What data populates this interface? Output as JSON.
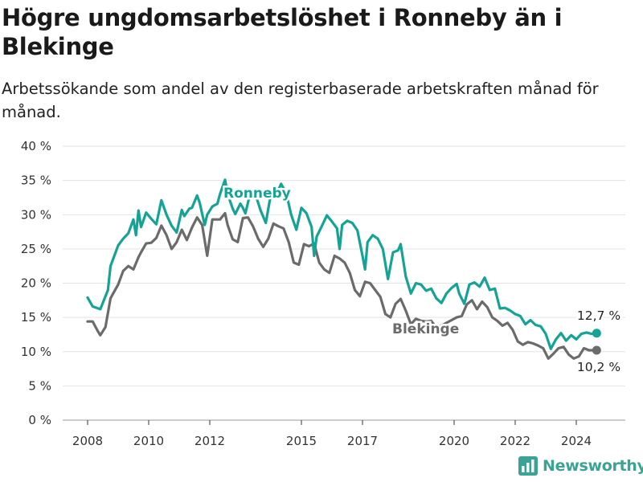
{
  "title": "Högre ungdomsarbetslöshet i Ronneby än i Blekinge",
  "subtitle": "Arbetssökande som andel av den registerbaserade arbetskraften månad för månad.",
  "brand": {
    "name": "Newsworthy",
    "icon": "bar-chart-logo-icon",
    "color": "#3aa394"
  },
  "colors": {
    "ronneby": "#14a394",
    "blekinge": "#6b6b6b",
    "grid": "#e3e3e3",
    "axis": "#333333"
  },
  "chart_data": {
    "type": "line",
    "title": "Högre ungdomsarbetslöshet i Ronneby än i Blekinge",
    "subtitle": "Arbetssökande som andel av den registerbaserade arbetskraften månad för månad.",
    "xlabel": "",
    "ylabel": "",
    "x_ticks": [
      "2008",
      "2010",
      "2012",
      "2015",
      "2017",
      "2020",
      "2022",
      "2024"
    ],
    "y_ticks": [
      "0 %",
      "5 %",
      "10 %",
      "15 %",
      "20 %",
      "25 %",
      "30 %",
      "35 %",
      "40 %"
    ],
    "ylim": [
      0,
      40
    ],
    "grid": "horizontal",
    "legend": "inline labels",
    "series": [
      {
        "name": "Ronneby",
        "end_label": "12,7 %",
        "points": [
          [
            "2008-01",
            17.9
          ],
          [
            "2008-03",
            16.6
          ],
          [
            "2008-06",
            16.2
          ],
          [
            "2008-09",
            19.0
          ],
          [
            "2008-10",
            22.5
          ],
          [
            "2009-01",
            25.5
          ],
          [
            "2009-03",
            26.5
          ],
          [
            "2009-05",
            27.3
          ],
          [
            "2009-07",
            29.3
          ],
          [
            "2009-08",
            27.0
          ],
          [
            "2009-09",
            30.6
          ],
          [
            "2009-10",
            28.2
          ],
          [
            "2009-12",
            30.3
          ],
          [
            "2010-02",
            29.4
          ],
          [
            "2010-04",
            28.6
          ],
          [
            "2010-06",
            32.1
          ],
          [
            "2010-08",
            30.0
          ],
          [
            "2010-10",
            28.4
          ],
          [
            "2010-12",
            27.4
          ],
          [
            "2011-02",
            30.7
          ],
          [
            "2011-03",
            29.8
          ],
          [
            "2011-05",
            30.9
          ],
          [
            "2011-06",
            31.0
          ],
          [
            "2011-08",
            32.8
          ],
          [
            "2011-09",
            31.8
          ],
          [
            "2011-11",
            28.5
          ],
          [
            "2011-12",
            30.0
          ],
          [
            "2012-02",
            31.2
          ],
          [
            "2012-04",
            31.6
          ],
          [
            "2012-05",
            33.0
          ],
          [
            "2012-07",
            35.1
          ],
          [
            "2012-08",
            33.0
          ],
          [
            "2012-10",
            30.9
          ],
          [
            "2012-11",
            30.1
          ],
          [
            "2013-01",
            31.6
          ],
          [
            "2013-02",
            31.0
          ],
          [
            "2013-03",
            30.2
          ],
          [
            "2013-05",
            33.3
          ],
          [
            "2013-07",
            32.9
          ],
          [
            "2013-09",
            30.6
          ],
          [
            "2013-11",
            28.8
          ],
          [
            "2014-01",
            33.0
          ],
          [
            "2014-03",
            32.8
          ],
          [
            "2014-05",
            34.5
          ],
          [
            "2014-07",
            33.2
          ],
          [
            "2014-09",
            30.0
          ],
          [
            "2014-11",
            27.8
          ],
          [
            "2015-01",
            31.0
          ],
          [
            "2015-03",
            30.2
          ],
          [
            "2015-05",
            28.2
          ],
          [
            "2015-06",
            24.0
          ],
          [
            "2015-07",
            26.8
          ],
          [
            "2015-09",
            28.3
          ],
          [
            "2015-11",
            29.9
          ],
          [
            "2016-01",
            29.0
          ],
          [
            "2016-03",
            28.0
          ],
          [
            "2016-04",
            25.0
          ],
          [
            "2016-05",
            28.5
          ],
          [
            "2016-07",
            29.1
          ],
          [
            "2016-09",
            28.8
          ],
          [
            "2016-11",
            27.7
          ],
          [
            "2017-01",
            24.0
          ],
          [
            "2017-02",
            22.0
          ],
          [
            "2017-03",
            26.0
          ],
          [
            "2017-05",
            27.0
          ],
          [
            "2017-07",
            26.5
          ],
          [
            "2017-09",
            25.0
          ],
          [
            "2017-11",
            20.6
          ],
          [
            "2018-01",
            24.5
          ],
          [
            "2018-03",
            24.8
          ],
          [
            "2018-04",
            25.7
          ],
          [
            "2018-06",
            21.0
          ],
          [
            "2018-08",
            18.5
          ],
          [
            "2018-10",
            20.0
          ],
          [
            "2018-12",
            19.8
          ],
          [
            "2019-02",
            18.9
          ],
          [
            "2019-04",
            19.2
          ],
          [
            "2019-06",
            17.8
          ],
          [
            "2019-08",
            17.1
          ],
          [
            "2019-10",
            18.5
          ],
          [
            "2019-12",
            19.3
          ],
          [
            "2020-02",
            19.9
          ],
          [
            "2020-03",
            18.5
          ],
          [
            "2020-05",
            17.0
          ],
          [
            "2020-07",
            19.8
          ],
          [
            "2020-09",
            20.1
          ],
          [
            "2020-11",
            19.5
          ],
          [
            "2021-01",
            20.8
          ],
          [
            "2021-03",
            19.0
          ],
          [
            "2021-05",
            19.2
          ],
          [
            "2021-07",
            16.3
          ],
          [
            "2021-09",
            16.4
          ],
          [
            "2021-11",
            16.0
          ],
          [
            "2022-01",
            15.5
          ],
          [
            "2022-03",
            15.2
          ],
          [
            "2022-05",
            14.0
          ],
          [
            "2022-07",
            14.6
          ],
          [
            "2022-09",
            13.9
          ],
          [
            "2022-11",
            13.7
          ],
          [
            "2023-01",
            12.6
          ],
          [
            "2023-03",
            10.4
          ],
          [
            "2023-05",
            11.8
          ],
          [
            "2023-07",
            12.7
          ],
          [
            "2023-09",
            11.6
          ],
          [
            "2023-11",
            12.4
          ],
          [
            "2024-01",
            11.8
          ],
          [
            "2024-03",
            12.6
          ],
          [
            "2024-05",
            12.8
          ],
          [
            "2024-07",
            12.6
          ],
          [
            "2024-09",
            12.7
          ]
        ]
      },
      {
        "name": "Blekinge",
        "end_label": "10,2 %",
        "points": [
          [
            "2008-01",
            14.4
          ],
          [
            "2008-03",
            14.4
          ],
          [
            "2008-05",
            13.0
          ],
          [
            "2008-06",
            12.4
          ],
          [
            "2008-08",
            13.6
          ],
          [
            "2008-10",
            17.8
          ],
          [
            "2009-01",
            19.8
          ],
          [
            "2009-03",
            21.8
          ],
          [
            "2009-05",
            22.5
          ],
          [
            "2009-07",
            22.0
          ],
          [
            "2009-09",
            23.8
          ],
          [
            "2009-10",
            24.5
          ],
          [
            "2009-12",
            25.8
          ],
          [
            "2010-02",
            25.9
          ],
          [
            "2010-04",
            26.6
          ],
          [
            "2010-06",
            28.4
          ],
          [
            "2010-08",
            27.0
          ],
          [
            "2010-10",
            25.0
          ],
          [
            "2010-12",
            26.0
          ],
          [
            "2011-02",
            27.8
          ],
          [
            "2011-04",
            26.3
          ],
          [
            "2011-06",
            28.1
          ],
          [
            "2011-08",
            29.6
          ],
          [
            "2011-10",
            28.5
          ],
          [
            "2011-12",
            24.0
          ],
          [
            "2012-02",
            29.3
          ],
          [
            "2012-05",
            29.3
          ],
          [
            "2012-07",
            30.2
          ],
          [
            "2012-08",
            28.5
          ],
          [
            "2012-10",
            26.4
          ],
          [
            "2012-12",
            26.0
          ],
          [
            "2013-02",
            29.5
          ],
          [
            "2013-04",
            29.6
          ],
          [
            "2013-06",
            28.3
          ],
          [
            "2013-08",
            26.5
          ],
          [
            "2013-10",
            25.3
          ],
          [
            "2013-12",
            26.5
          ],
          [
            "2014-02",
            28.7
          ],
          [
            "2014-04",
            28.3
          ],
          [
            "2014-06",
            28.0
          ],
          [
            "2014-08",
            26.0
          ],
          [
            "2014-10",
            23.0
          ],
          [
            "2014-12",
            22.7
          ],
          [
            "2015-02",
            25.7
          ],
          [
            "2015-04",
            25.4
          ],
          [
            "2015-06",
            25.8
          ],
          [
            "2015-08",
            23.0
          ],
          [
            "2015-10",
            22.0
          ],
          [
            "2015-12",
            21.5
          ],
          [
            "2016-02",
            24.0
          ],
          [
            "2016-04",
            23.6
          ],
          [
            "2016-06",
            23.0
          ],
          [
            "2016-08",
            21.5
          ],
          [
            "2016-10",
            19.0
          ],
          [
            "2016-12",
            18.1
          ],
          [
            "2017-02",
            20.2
          ],
          [
            "2017-04",
            20.0
          ],
          [
            "2017-06",
            19.0
          ],
          [
            "2017-08",
            18.0
          ],
          [
            "2017-10",
            15.5
          ],
          [
            "2017-12",
            15.0
          ],
          [
            "2018-02",
            17.0
          ],
          [
            "2018-04",
            17.7
          ],
          [
            "2018-06",
            16.0
          ],
          [
            "2018-08",
            14.0
          ],
          [
            "2018-10",
            14.8
          ],
          [
            "2018-12",
            14.5
          ],
          [
            "2019-02",
            14.4
          ],
          [
            "2019-04",
            14.5
          ],
          [
            "2019-06",
            13.5
          ],
          [
            "2019-08",
            13.8
          ],
          [
            "2019-10",
            14.2
          ],
          [
            "2019-12",
            14.6
          ],
          [
            "2020-02",
            15.0
          ],
          [
            "2020-04",
            15.2
          ],
          [
            "2020-06",
            16.9
          ],
          [
            "2020-08",
            17.5
          ],
          [
            "2020-10",
            16.2
          ],
          [
            "2020-12",
            17.3
          ],
          [
            "2021-02",
            16.5
          ],
          [
            "2021-04",
            15.0
          ],
          [
            "2021-06",
            14.5
          ],
          [
            "2021-08",
            13.8
          ],
          [
            "2021-10",
            14.2
          ],
          [
            "2021-12",
            13.2
          ],
          [
            "2022-02",
            11.5
          ],
          [
            "2022-04",
            11.0
          ],
          [
            "2022-06",
            11.4
          ],
          [
            "2022-08",
            11.2
          ],
          [
            "2022-10",
            10.9
          ],
          [
            "2022-12",
            10.5
          ],
          [
            "2023-02",
            9.0
          ],
          [
            "2023-04",
            9.7
          ],
          [
            "2023-06",
            10.5
          ],
          [
            "2023-08",
            10.7
          ],
          [
            "2023-10",
            9.6
          ],
          [
            "2023-12",
            9.0
          ],
          [
            "2024-02",
            9.3
          ],
          [
            "2024-04",
            10.5
          ],
          [
            "2024-06",
            10.2
          ],
          [
            "2024-09",
            10.2
          ]
        ]
      }
    ]
  }
}
